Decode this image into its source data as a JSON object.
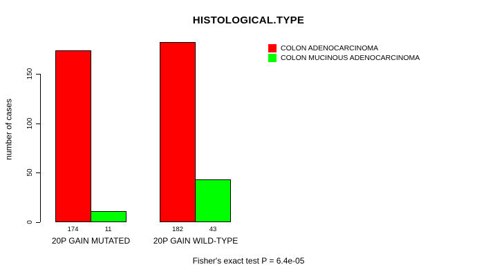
{
  "chart_data": {
    "type": "bar",
    "title": "HISTOLOGICAL.TYPE",
    "xlabel": "",
    "ylabel": "number of cases",
    "categories": [
      "20P GAIN MUTATED",
      "20P GAIN WILD-TYPE"
    ],
    "series": [
      {
        "name": "COLON ADENOCARCINOMA",
        "color": "#FF0000",
        "values": [
          174,
          182
        ]
      },
      {
        "name": "COLON MUCINOUS ADENOCARCINOMA",
        "color": "#00FF00",
        "values": [
          11,
          43
        ]
      }
    ],
    "yticks": [
      0,
      50,
      100,
      150
    ],
    "ylim": [
      0,
      190
    ],
    "grid": false,
    "legend_position": "top-right",
    "bar_border_color": "#000000",
    "background_color": "#FFFFFF",
    "annotation": "Fisher's exact test P = 6.4e-05"
  }
}
